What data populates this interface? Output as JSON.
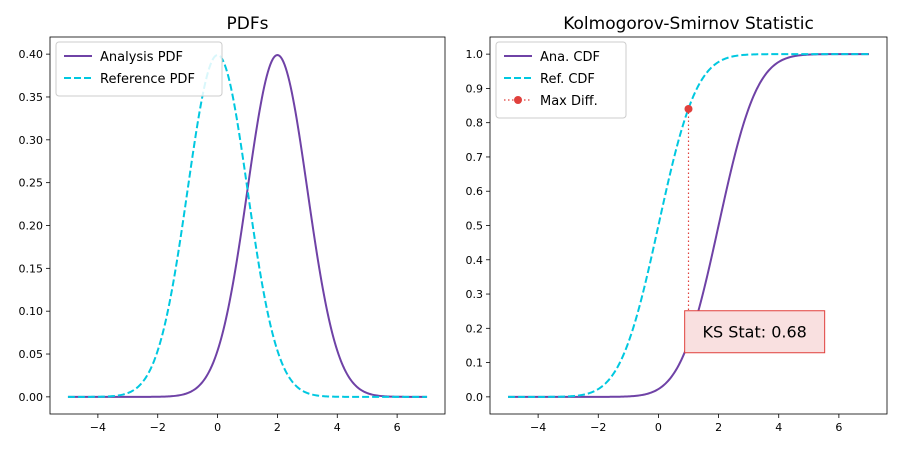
{
  "chart_data": [
    {
      "type": "line",
      "title": "PDFs",
      "xlabel": "",
      "ylabel": "",
      "xlim": [
        -5.6,
        7.6
      ],
      "ylim": [
        -0.02,
        0.42
      ],
      "xticks": [
        -4,
        -2,
        0,
        2,
        4,
        6
      ],
      "xtick_labels": [
        "−4",
        "−2",
        "0",
        "2",
        "4",
        "6"
      ],
      "yticks": [
        0.0,
        0.05,
        0.1,
        0.15,
        0.2,
        0.25,
        0.3,
        0.35,
        0.4
      ],
      "ytick_labels": [
        "0.00",
        "0.05",
        "0.10",
        "0.15",
        "0.20",
        "0.25",
        "0.30",
        "0.35",
        "0.40"
      ],
      "grid": false,
      "legend_position": "top-left",
      "x_range": [
        -5,
        7
      ],
      "series": [
        {
          "name": "Analysis PDF",
          "distribution": "normal",
          "mean": 2,
          "std": 1,
          "color": "#6f42a6",
          "style": "solid"
        },
        {
          "name": "Reference PDF",
          "distribution": "normal",
          "mean": 0,
          "std": 1,
          "color": "#00c8e0",
          "style": "dashed"
        }
      ]
    },
    {
      "type": "line",
      "title": "Kolmogorov-Smirnov Statistic",
      "xlabel": "",
      "ylabel": "",
      "xlim": [
        -5.6,
        7.6
      ],
      "ylim": [
        -0.05,
        1.05
      ],
      "xticks": [
        -4,
        -2,
        0,
        2,
        4,
        6
      ],
      "xtick_labels": [
        "−4",
        "−2",
        "0",
        "2",
        "4",
        "6"
      ],
      "yticks": [
        0.0,
        0.1,
        0.2,
        0.3,
        0.4,
        0.5,
        0.6,
        0.7,
        0.8,
        0.9,
        1.0
      ],
      "ytick_labels": [
        "0.0",
        "0.1",
        "0.2",
        "0.3",
        "0.4",
        "0.5",
        "0.6",
        "0.7",
        "0.8",
        "0.9",
        "1.0"
      ],
      "grid": false,
      "legend_position": "top-left",
      "x_range": [
        -5,
        7
      ],
      "series": [
        {
          "name": "Ana. CDF",
          "distribution": "normal_cdf",
          "mean": 2,
          "std": 1,
          "color": "#6f42a6",
          "style": "solid"
        },
        {
          "name": "Ref. CDF",
          "distribution": "normal_cdf",
          "mean": 0,
          "std": 1,
          "color": "#00c8e0",
          "style": "dashed"
        },
        {
          "name": "Max Diff.",
          "color": "#e0403c",
          "style": "dotted-markers",
          "x": [
            1,
            1
          ],
          "y": [
            0.16,
            0.84
          ]
        }
      ],
      "annotation": {
        "text": "KS Stat: 0.68",
        "x": 3.2,
        "y": 0.19,
        "face_color": "#f9e0e0",
        "edge_color": "#e0403c"
      }
    }
  ]
}
